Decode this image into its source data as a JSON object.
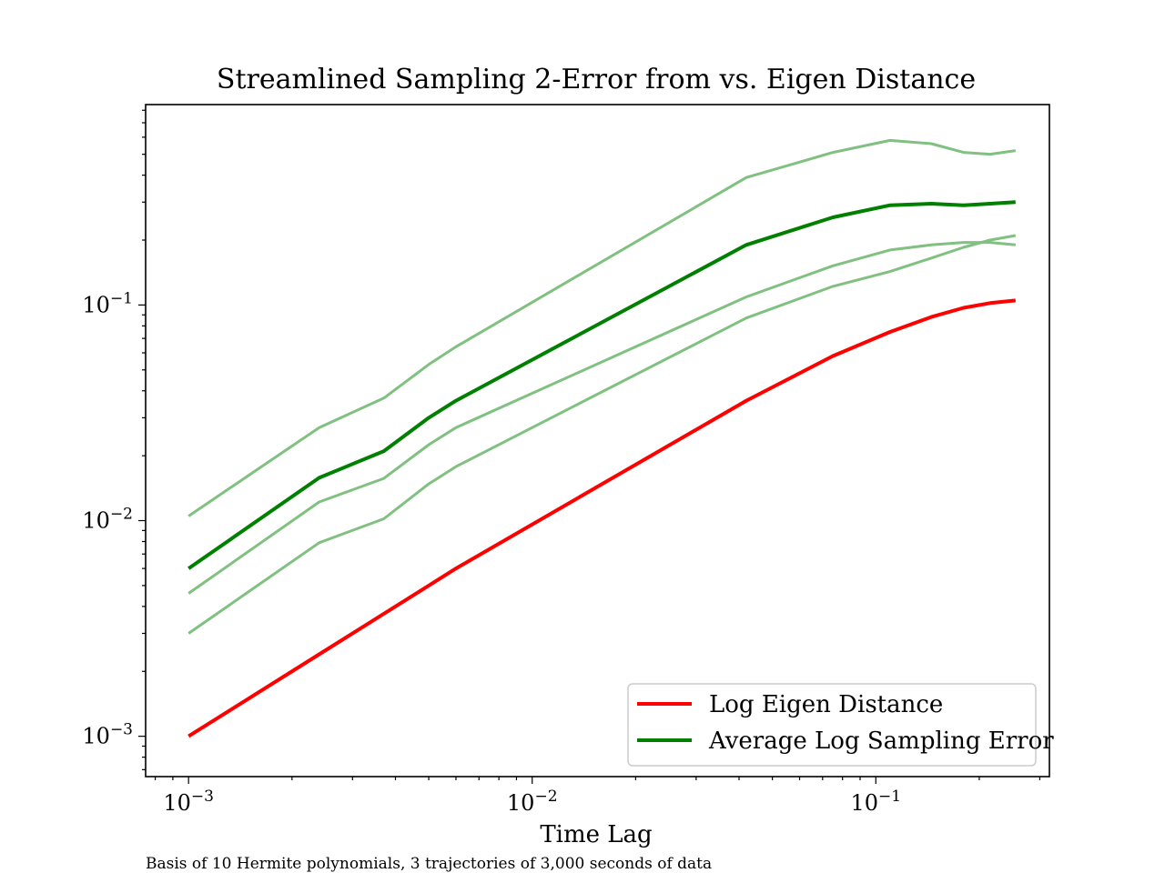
{
  "chart_data": {
    "type": "line",
    "title": "Streamlined Sampling 2-Error from vs. Eigen Distance",
    "xlabel": "Time Lag",
    "ylabel": "",
    "xscale": "log",
    "yscale": "log",
    "xlim": [
      0.00075,
      0.32
    ],
    "ylim": [
      0.00065,
      0.85
    ],
    "grid": false,
    "legend_position": "lower-right",
    "x_ticks": [
      {
        "base": "10",
        "exp": "−3"
      },
      {
        "base": "10",
        "exp": "−2"
      },
      {
        "base": "10",
        "exp": "−1"
      }
    ],
    "y_ticks": [
      {
        "base": "10",
        "exp": "−3"
      },
      {
        "base": "10",
        "exp": "−2"
      },
      {
        "base": "10",
        "exp": "−1"
      }
    ],
    "series": [
      {
        "name": "Log Eigen Distance",
        "color": "#ff0000",
        "role": "main",
        "x": [
          0.001,
          0.0024,
          0.0037,
          0.005,
          0.006,
          0.042,
          0.075,
          0.11,
          0.145,
          0.18,
          0.215,
          0.255
        ],
        "y": [
          0.001,
          0.0024,
          0.0037,
          0.005,
          0.006,
          0.036,
          0.058,
          0.075,
          0.088,
          0.097,
          0.102,
          0.105
        ]
      },
      {
        "name": "Average Log Sampling Error",
        "color": "#008000",
        "role": "main",
        "x": [
          0.001,
          0.0024,
          0.0037,
          0.005,
          0.006,
          0.042,
          0.075,
          0.11,
          0.145,
          0.18,
          0.215,
          0.255
        ],
        "y": [
          0.006,
          0.0158,
          0.021,
          0.03,
          0.036,
          0.19,
          0.255,
          0.29,
          0.295,
          0.29,
          0.295,
          0.3
        ]
      },
      {
        "color": "#80c080",
        "role": "trajectory",
        "x": [
          0.001,
          0.0024,
          0.0037,
          0.005,
          0.006,
          0.042,
          0.075,
          0.11,
          0.145,
          0.18,
          0.215,
          0.255
        ],
        "y": [
          0.0105,
          0.027,
          0.037,
          0.053,
          0.064,
          0.39,
          0.51,
          0.58,
          0.56,
          0.51,
          0.5,
          0.52
        ]
      },
      {
        "color": "#80c080",
        "role": "trajectory",
        "x": [
          0.001,
          0.0024,
          0.0037,
          0.005,
          0.006,
          0.042,
          0.075,
          0.11,
          0.145,
          0.18,
          0.215,
          0.255
        ],
        "y": [
          0.0046,
          0.0122,
          0.0157,
          0.0225,
          0.027,
          0.109,
          0.152,
          0.18,
          0.19,
          0.195,
          0.195,
          0.19
        ]
      },
      {
        "color": "#80c080",
        "role": "trajectory",
        "x": [
          0.001,
          0.0024,
          0.0037,
          0.005,
          0.006,
          0.042,
          0.075,
          0.11,
          0.145,
          0.18,
          0.215,
          0.255
        ],
        "y": [
          0.003,
          0.0079,
          0.0102,
          0.0148,
          0.0178,
          0.087,
          0.122,
          0.143,
          0.165,
          0.185,
          0.2,
          0.21
        ]
      }
    ],
    "caption": "Basis of 10 Hermite polynomials, 3 trajectories of 3,000 seconds of data"
  }
}
